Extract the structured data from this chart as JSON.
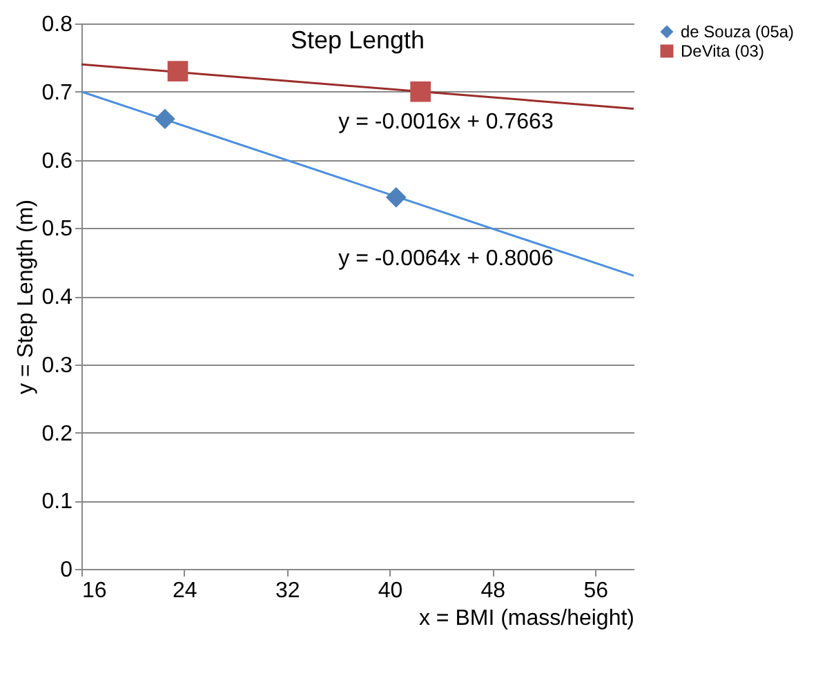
{
  "chart_data": {
    "type": "scatter",
    "title": "Step Length",
    "xlabel": "x = BMI (mass/height)",
    "ylabel": "y = Step Length (m)",
    "xlim": [
      16,
      59
    ],
    "xticks": [
      16,
      24,
      32,
      40,
      48,
      56
    ],
    "ylim": [
      0,
      0.8
    ],
    "yticks": [
      0,
      0.1,
      0.2,
      0.3,
      0.4,
      0.5,
      0.6,
      0.7,
      0.8
    ],
    "grid": "y",
    "legend": "right",
    "series": [
      {
        "name": "de Souza (05a)",
        "marker": "diamond",
        "color": "#4f81bd",
        "x": [
          22.5,
          40.5
        ],
        "values": [
          0.66,
          0.545
        ]
      },
      {
        "name": "DeVita (03)",
        "marker": "square",
        "color": "#c0504d",
        "x": [
          23.5,
          42.4
        ],
        "values": [
          0.73,
          0.7
        ]
      },
      {
        "type": "line",
        "color": "#4a8fde",
        "x": [
          16,
          59
        ],
        "values": [
          0.7,
          0.43
        ]
      },
      {
        "type": "line",
        "color": "#9b2d2a",
        "x": [
          16,
          59
        ],
        "values": [
          0.74,
          0.675
        ]
      }
    ],
    "annotations": [
      "y = -0.0016x + 0.7663",
      "y = -0.0064x + 0.8006"
    ]
  }
}
